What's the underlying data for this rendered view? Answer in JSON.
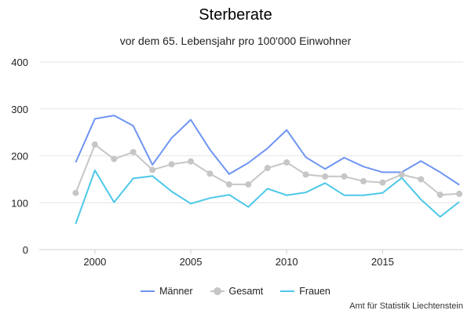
{
  "chart_data": {
    "type": "line",
    "title": "Sterberate",
    "subtitle": "vor dem 65. Lebensjahr pro 100'000 Einwohner",
    "x": [
      1999,
      2000,
      2001,
      2002,
      2003,
      2004,
      2005,
      2006,
      2007,
      2008,
      2009,
      2010,
      2011,
      2012,
      2013,
      2014,
      2015,
      2016,
      2017,
      2018,
      2019
    ],
    "xlim": [
      1997.1,
      2019.2
    ],
    "ylim": [
      0,
      400
    ],
    "x_ticks": [
      2000,
      2005,
      2010,
      2015
    ],
    "y_ticks": [
      0,
      100,
      200,
      300,
      400
    ],
    "grid": true,
    "legend_position": "bottom",
    "series": [
      {
        "name": "Männer",
        "color": "#6f94f2",
        "markers": false,
        "values": [
          186,
          279,
          286,
          264,
          181,
          238,
          277,
          213,
          161,
          185,
          216,
          255,
          197,
          172,
          196,
          177,
          165,
          165,
          189,
          165,
          138
        ]
      },
      {
        "name": "Gesamt",
        "color": "#c6c6c6",
        "markers": true,
        "values": [
          121,
          224,
          193,
          208,
          170,
          182,
          188,
          162,
          139,
          139,
          174,
          186,
          160,
          156,
          156,
          146,
          143,
          160,
          150,
          117,
          119
        ]
      },
      {
        "name": "Frauen",
        "color": "#4dc8e8",
        "markers": false,
        "values": [
          55,
          169,
          101,
          152,
          157,
          124,
          98,
          110,
          117,
          91,
          130,
          116,
          122,
          142,
          116,
          116,
          121,
          153,
          107,
          70,
          102
        ]
      }
    ]
  },
  "credit": "Amt für Statistik Liechtenstein"
}
